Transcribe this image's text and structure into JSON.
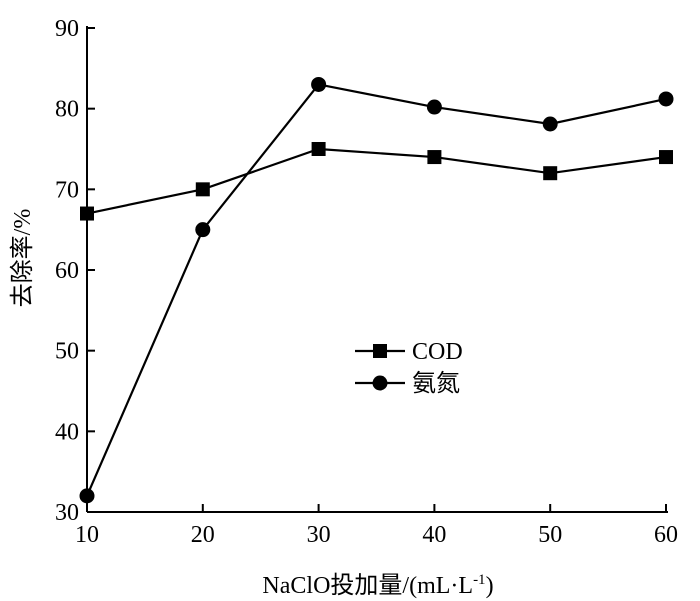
{
  "chart_data": {
    "type": "line",
    "title": "",
    "xlabel": "NaClO投加量/(mL·L",
    "xlabel_sup": "-1",
    "xlabel_tail": ")",
    "ylabel": "去除率/%",
    "x": [
      10,
      20,
      30,
      40,
      50,
      60
    ],
    "xlim": [
      10,
      60
    ],
    "ylim": [
      30,
      90
    ],
    "xticks": [
      10,
      20,
      30,
      40,
      50,
      60
    ],
    "yticks": [
      30,
      40,
      50,
      60,
      70,
      80,
      90
    ],
    "grid": false,
    "legend_position": "center",
    "series": [
      {
        "name": "COD",
        "marker": "square",
        "values": [
          67,
          70,
          75,
          74,
          72,
          74
        ]
      },
      {
        "name": "氨氮",
        "marker": "circle",
        "values": [
          32,
          65,
          83,
          80.2,
          78.1,
          81.2
        ]
      }
    ]
  }
}
